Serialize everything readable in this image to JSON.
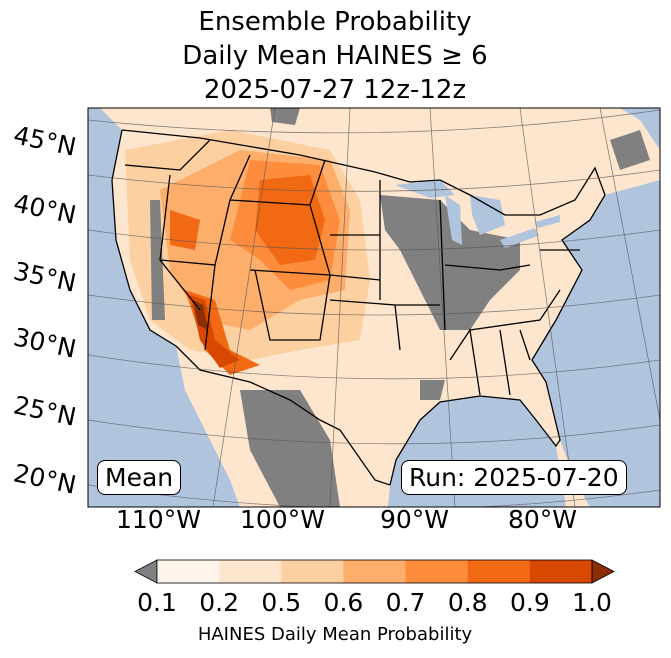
{
  "title": {
    "line1": "Ensemble Probability",
    "line2": "Daily Mean HAINES ≥ 6",
    "line3": "2025-07-27 12z-12z"
  },
  "map": {
    "lat_labels": [
      "45°N",
      "40°N",
      "35°N",
      "30°N",
      "25°N",
      "20°N"
    ],
    "lon_labels": [
      "110°W",
      "100°W",
      "90°W",
      "80°W"
    ],
    "mean_label": "Mean",
    "run_label": "Run: 2025-07-20",
    "colors": {
      "ocean": "#b0c4de",
      "under": "#808080",
      "over": "#8c2d04"
    }
  },
  "colorbar": {
    "ticks": [
      "0.1",
      "0.2",
      "0.5",
      "0.6",
      "0.7",
      "0.8",
      "0.9",
      "1.0"
    ],
    "colors": [
      "#fff5eb",
      "#fee6ce",
      "#fdd0a2",
      "#fdae6b",
      "#fd8d3c",
      "#f16913",
      "#d94801"
    ],
    "label": "HAINES Daily Mean Probability"
  }
}
